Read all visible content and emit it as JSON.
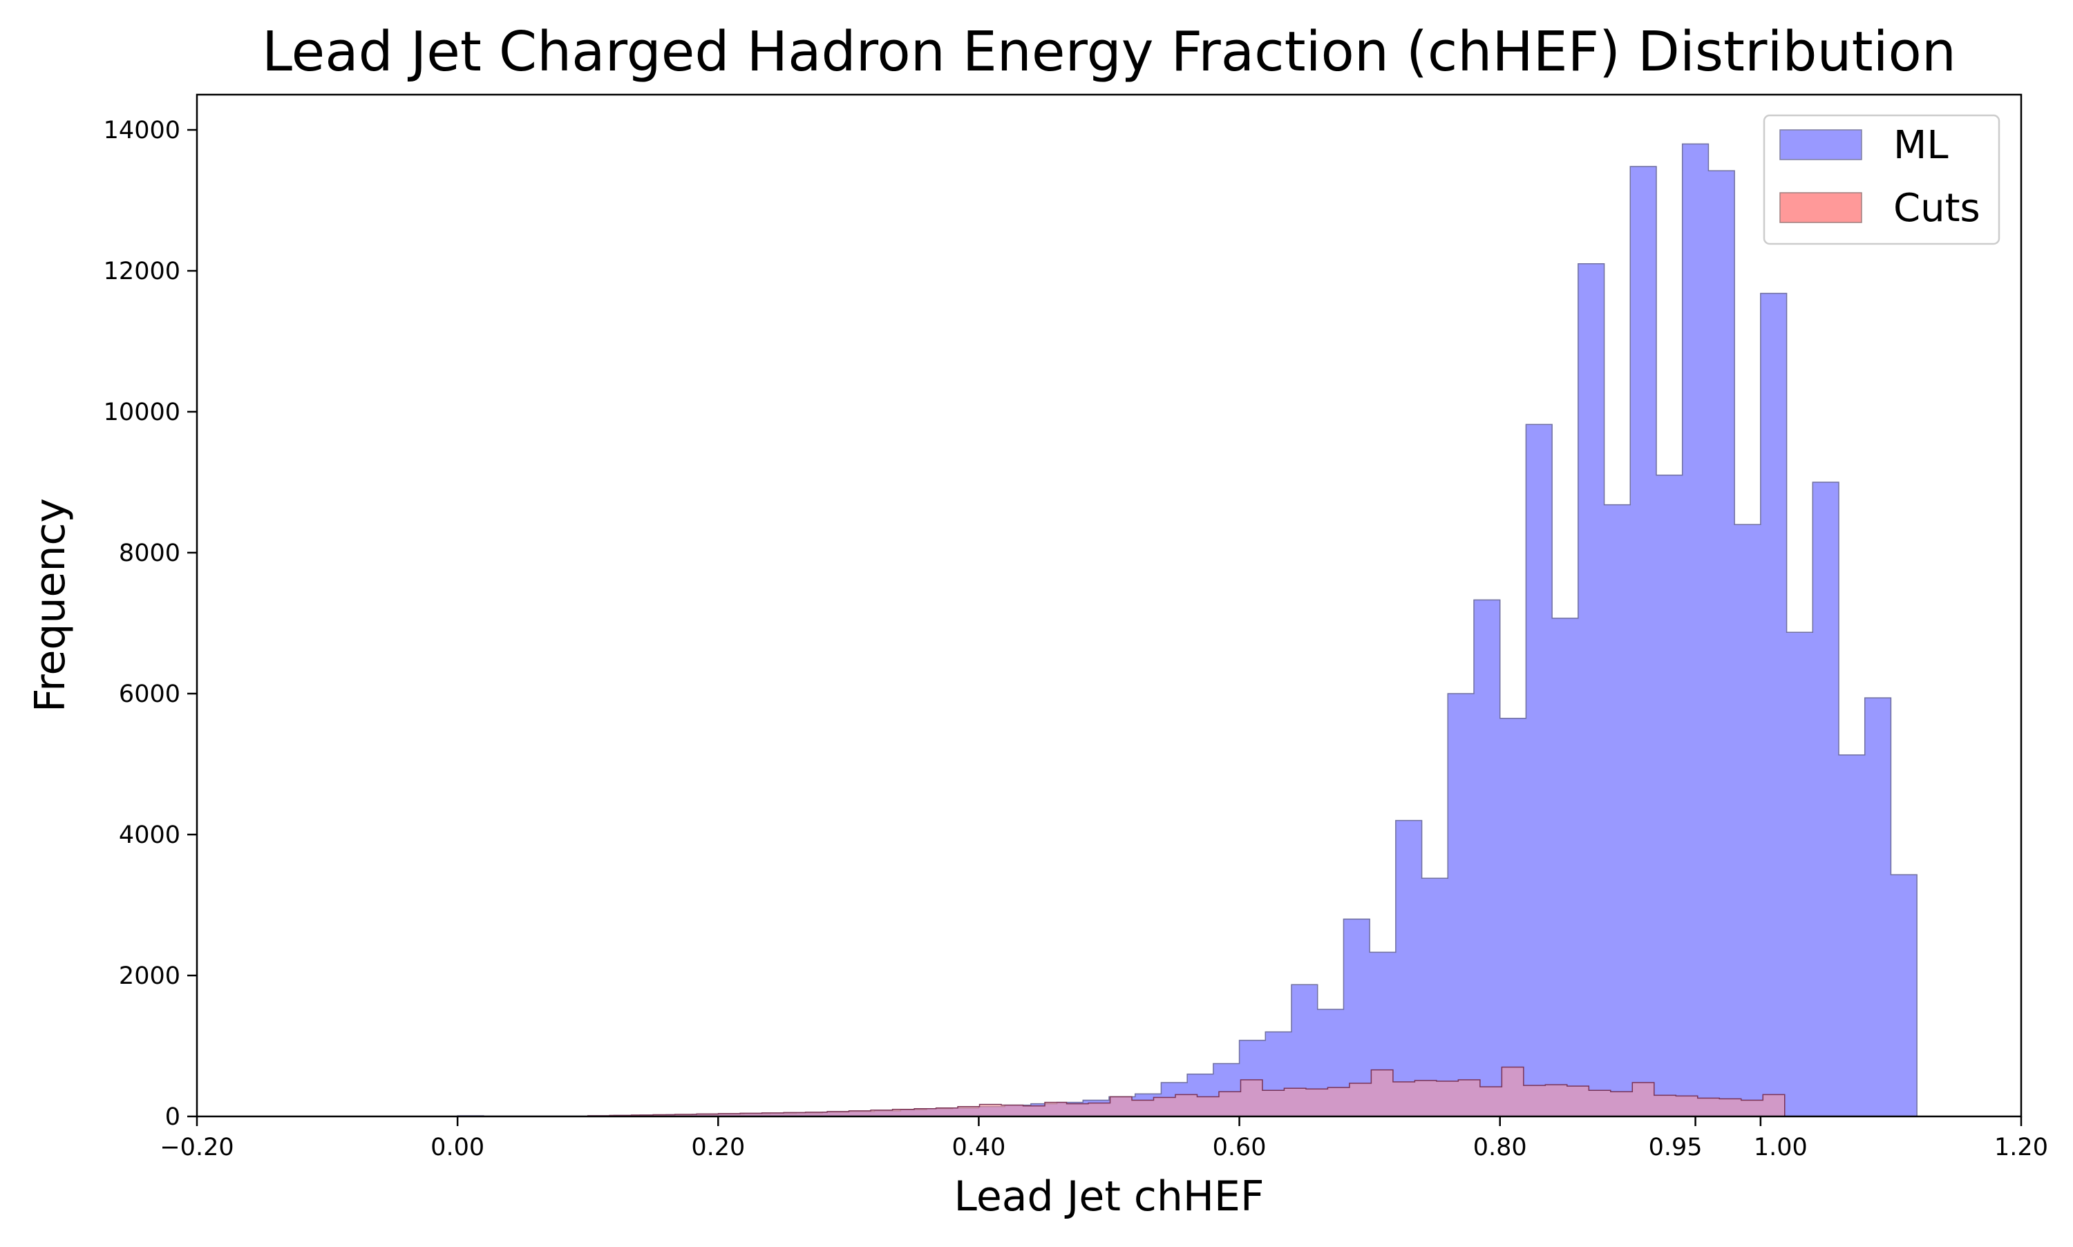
{
  "chart_data": {
    "type": "bar",
    "title": "Lead Jet Charged Hadron Energy Fraction (chHEF) Distribution",
    "xlabel": "Lead Jet chHEF",
    "ylabel": "Frequency",
    "xlim": [
      -0.2,
      1.2
    ],
    "ylim": [
      0,
      14500
    ],
    "x_ticks": [
      -0.2,
      0.0,
      0.2,
      0.4,
      0.6,
      0.8,
      0.95,
      1.0,
      1.2
    ],
    "x_tick_labels": [
      "−0.20",
      "0.00",
      "0.20",
      "0.40",
      "0.60",
      "0.80",
      "0.95",
      "1.00",
      "1.20"
    ],
    "y_ticks": [
      0,
      2000,
      4000,
      6000,
      8000,
      10000,
      12000,
      14000
    ],
    "y_tick_labels": [
      "0",
      "2000",
      "4000",
      "6000",
      "8000",
      "10000",
      "12000",
      "14000"
    ],
    "grid": false,
    "legend_position": "top-right",
    "series": [
      {
        "name": "ML",
        "color": "#9999ff",
        "bin_start": 0.0,
        "bin_width": 0.02,
        "values": [
          10,
          5,
          5,
          5,
          5,
          10,
          15,
          20,
          25,
          30,
          35,
          40,
          45,
          50,
          60,
          70,
          80,
          95,
          110,
          120,
          140,
          160,
          180,
          200,
          230,
          280,
          320,
          480,
          600,
          750,
          1080,
          1200,
          1870,
          1520,
          2800,
          2330,
          4200,
          3380,
          6000,
          7330,
          5650,
          9820,
          7070,
          12100,
          8680,
          13480,
          9100,
          13800,
          13420,
          8400,
          11680,
          6870,
          9000,
          5130,
          5940,
          3430
        ]
      },
      {
        "name": "Cuts",
        "color": "#ff9999",
        "bin_start": 0.1,
        "bin_width": 0.0167,
        "values": [
          10,
          15,
          20,
          25,
          30,
          35,
          40,
          45,
          50,
          55,
          60,
          70,
          80,
          90,
          100,
          110,
          120,
          140,
          170,
          160,
          150,
          200,
          180,
          190,
          280,
          230,
          270,
          310,
          280,
          350,
          520,
          370,
          400,
          390,
          410,
          470,
          660,
          490,
          510,
          500,
          520,
          420,
          700,
          440,
          450,
          430,
          370,
          350,
          480,
          300,
          290,
          260,
          250,
          230,
          310
        ]
      }
    ]
  }
}
